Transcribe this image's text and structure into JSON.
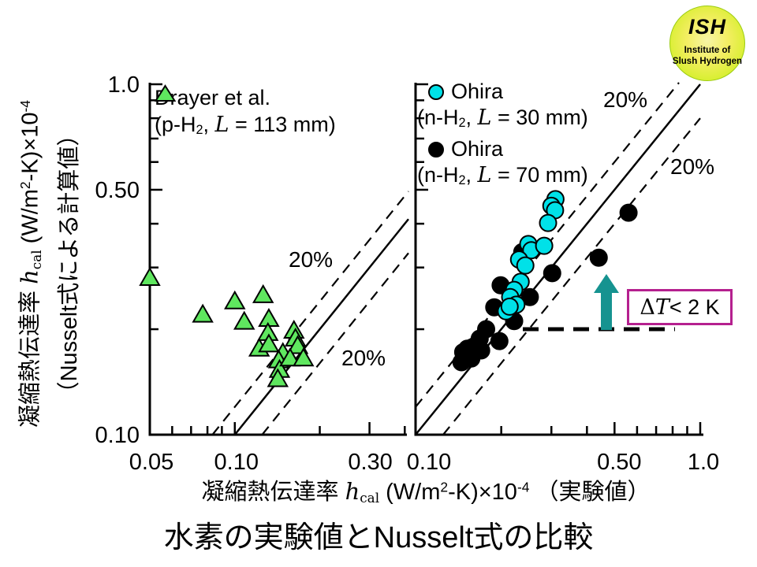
{
  "logo": {
    "acronym": "ISH",
    "line1": "Institute of",
    "line2": "Slush Hydrogen"
  },
  "title": "水素の実験値とNusselt式の比較",
  "y_axis_label": {
    "line1_segments": [
      {
        "t": "凝縮熱伝達率 "
      },
      {
        "t": "h",
        "s": "iser"
      },
      {
        "t": "cal",
        "s": "subser"
      },
      {
        "t": " (W/m"
      },
      {
        "t": "2",
        "s": "sup"
      },
      {
        "t": "-K)×10"
      },
      {
        "t": "-4",
        "s": "sup"
      }
    ],
    "line2": "（Nusselt式による計算値）"
  },
  "x_axis_label_segments": [
    {
      "t": "凝縮熱伝達率  "
    },
    {
      "t": "h",
      "s": "iser"
    },
    {
      "t": "cal",
      "s": "subser"
    },
    {
      "t": " (W/m"
    },
    {
      "t": "2",
      "s": "sup"
    },
    {
      "t": "-K)×10"
    },
    {
      "t": "-4",
      "s": "sup"
    },
    {
      "t": " （実験値）"
    }
  ],
  "chart_data": [
    {
      "type": "scatter",
      "panel": "left",
      "x_axis": {
        "scale": "log",
        "min": 0.05,
        "max": 0.41,
        "major_ticks": [
          0.05,
          0.1,
          0.3
        ],
        "major_tick_labels": [
          "0.05",
          "0.10",
          "0.30"
        ],
        "minor_ticks": [
          0.06,
          0.07,
          0.08,
          0.09,
          0.2,
          0.4
        ]
      },
      "y_axis": {
        "scale": "log",
        "min": 0.1,
        "max": 1.0,
        "major_ticks": [
          0.1,
          0.5,
          1.0
        ],
        "major_tick_labels": [
          "0.10",
          "0.50",
          "1.0"
        ],
        "minor_ticks": [
          0.2,
          0.3,
          0.4,
          0.6,
          0.7,
          0.8,
          0.9
        ]
      },
      "reference_lines": [
        {
          "ratio": 1.0,
          "style": "solid",
          "label": ""
        },
        {
          "ratio": 1.2,
          "style": "dashed",
          "label": "20%"
        },
        {
          "ratio": 0.8,
          "style": "dashed",
          "label": "20%"
        }
      ],
      "legend": [
        {
          "label": "Drayer et al.",
          "marker": "triangle",
          "color": "#5fe75f",
          "detail_segments": [
            {
              "t": "(p-H"
            },
            {
              "t": "2",
              "s": "sub"
            },
            {
              "t": ", "
            },
            {
              "t": "L",
              "s": "iser"
            },
            {
              "t": " = 113 mm)"
            }
          ]
        }
      ],
      "series": [
        {
          "name": "Drayer et al. (p-H2, L = 113 mm)",
          "marker": "triangle",
          "color": "#5fe75f",
          "points": [
            [
              0.05,
              0.28
            ],
            [
              0.077,
              0.22
            ],
            [
              0.1,
              0.24
            ],
            [
              0.108,
              0.21
            ],
            [
              0.126,
              0.25
            ],
            [
              0.132,
              0.214
            ],
            [
              0.131,
              0.195
            ],
            [
              0.122,
              0.176
            ],
            [
              0.132,
              0.181
            ],
            [
              0.148,
              0.171
            ],
            [
              0.143,
              0.163
            ],
            [
              0.144,
              0.153
            ],
            [
              0.142,
              0.144
            ],
            [
              0.162,
              0.198
            ],
            [
              0.164,
              0.188
            ],
            [
              0.167,
              0.179
            ],
            [
              0.157,
              0.165
            ],
            [
              0.175,
              0.165
            ]
          ]
        }
      ]
    },
    {
      "type": "scatter",
      "panel": "right",
      "x_axis": {
        "scale": "log",
        "min": 0.1,
        "max": 1.0,
        "major_ticks": [
          0.1,
          0.5,
          1.0
        ],
        "major_tick_labels": [
          "0.10",
          "0.50",
          "1.0"
        ],
        "minor_ticks": [
          0.2,
          0.3,
          0.4,
          0.6,
          0.7,
          0.8,
          0.9
        ]
      },
      "y_axis": {
        "scale": "log",
        "min": 0.1,
        "max": 1.0,
        "major_ticks": [
          0.1,
          0.5,
          1.0
        ],
        "major_tick_labels": [
          "0.10",
          "0.50",
          "1.0"
        ],
        "minor_ticks": [
          0.2,
          0.3,
          0.4,
          0.6,
          0.7,
          0.8,
          0.9
        ]
      },
      "reference_lines": [
        {
          "ratio": 1.0,
          "style": "solid",
          "label": ""
        },
        {
          "ratio": 1.2,
          "style": "dashed",
          "label": "20%"
        },
        {
          "ratio": 0.8,
          "style": "dashed",
          "label": "20%"
        }
      ],
      "legend": [
        {
          "label": "Ohira",
          "marker": "circle",
          "color": "#00e1e8",
          "detail_segments": [
            {
              "t": "(n-H"
            },
            {
              "t": "2",
              "s": "sub"
            },
            {
              "t": ", "
            },
            {
              "t": "L",
              "s": "iser"
            },
            {
              "t": " = 30 mm)"
            }
          ]
        },
        {
          "label": "Ohira",
          "marker": "circle",
          "color": "#000000",
          "detail_segments": [
            {
              "t": "(n-H"
            },
            {
              "t": "2",
              "s": "sub"
            },
            {
              "t": ", "
            },
            {
              "t": "L",
              "s": "iser"
            },
            {
              "t": " = 70 mm)"
            }
          ]
        }
      ],
      "series": [
        {
          "name": "Ohira (n-H2, L = 70 mm)",
          "marker": "circle",
          "color": "#000000",
          "points": [
            [
              0.56,
              0.43
            ],
            [
              0.44,
              0.32
            ],
            [
              0.237,
              0.332
            ],
            [
              0.199,
              0.267
            ],
            [
              0.189,
              0.231
            ],
            [
              0.252,
              0.247
            ],
            [
              0.302,
              0.289
            ],
            [
              0.222,
              0.211
            ],
            [
              0.177,
              0.2
            ],
            [
              0.168,
              0.188
            ],
            [
              0.197,
              0.185
            ],
            [
              0.152,
              0.176
            ],
            [
              0.147,
              0.172
            ],
            [
              0.157,
              0.165
            ],
            [
              0.145,
              0.161
            ],
            [
              0.15,
              0.165
            ],
            [
              0.159,
              0.178
            ],
            [
              0.17,
              0.174
            ]
          ]
        },
        {
          "name": "Ohira (n-H2, L = 30 mm)",
          "marker": "circle",
          "color": "#00e1e8",
          "points": [
            [
              0.31,
              0.47
            ],
            [
              0.3,
              0.45
            ],
            [
              0.309,
              0.437
            ],
            [
              0.292,
              0.402
            ],
            [
              0.249,
              0.35
            ],
            [
              0.255,
              0.336
            ],
            [
              0.283,
              0.346
            ],
            [
              0.231,
              0.316
            ],
            [
              0.243,
              0.304
            ],
            [
              0.234,
              0.273
            ],
            [
              0.222,
              0.259
            ],
            [
              0.215,
              0.247
            ],
            [
              0.208,
              0.225
            ],
            [
              0.226,
              0.235
            ],
            [
              0.214,
              0.232
            ]
          ]
        }
      ],
      "annotation": {
        "segments": [
          {
            "t": "Δ",
            "s": "ser"
          },
          {
            "t": "T",
            "s": "iser"
          },
          {
            "t": " < 2 K"
          }
        ],
        "box_color": "#b5208f",
        "arrow_color": "#169390"
      }
    }
  ]
}
